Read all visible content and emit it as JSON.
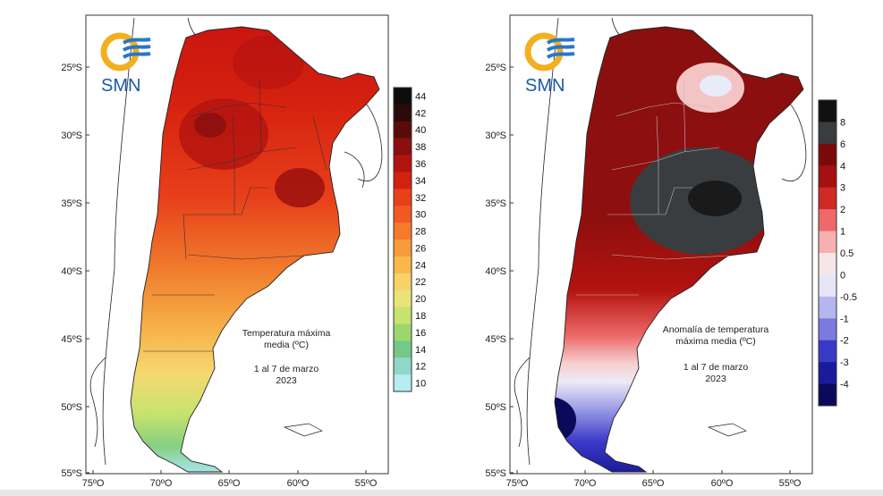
{
  "maps": [
    {
      "id": "tmax",
      "logo": {
        "text": "SMN",
        "colors": {
          "sun": "#f2b01e",
          "waves": "#2a76c8"
        }
      },
      "title_lines": [
        "Temperatura máxima",
        "media (ºC)"
      ],
      "date_line": "1 al 7 de marzo",
      "year_line": "2023",
      "lat_ticks": [
        "25ºS",
        "30ºS",
        "35ºS",
        "40ºS",
        "45ºS",
        "50ºS",
        "55ºS"
      ],
      "lon_ticks": [
        "75ºO",
        "70ºO",
        "65ºO",
        "60ºO",
        "55ºO"
      ],
      "legend": {
        "labels": [
          "44",
          "42",
          "40",
          "38",
          "36",
          "34",
          "32",
          "30",
          "28",
          "26",
          "24",
          "22",
          "20",
          "18",
          "16",
          "14",
          "12",
          "10"
        ],
        "colors": [
          "#0d0d0d",
          "#2a0a0a",
          "#5a0a0a",
          "#8a0f0f",
          "#b3130f",
          "#d4200f",
          "#e8401a",
          "#f05a22",
          "#f57a2c",
          "#f79a3a",
          "#f8b84a",
          "#f6d268",
          "#e8e47a",
          "#c6e36e",
          "#9ed66e",
          "#74c98a",
          "#8fd8c8",
          "#b6ecf4"
        ]
      }
    },
    {
      "id": "anomaly",
      "logo": {
        "text": "SMN",
        "colors": {
          "sun": "#f2b01e",
          "waves": "#2a76c8"
        }
      },
      "title_lines": [
        "Anomalía de temperatura",
        "máxima media (ºC)"
      ],
      "date_line": "1 al 7 de marzo",
      "year_line": "2023",
      "lat_ticks": [
        "25ºS",
        "30ºS",
        "35ºS",
        "40ºS",
        "45ºS",
        "50ºS",
        "55ºS"
      ],
      "lon_ticks": [
        "75ºO",
        "70ºO",
        "65ºO",
        "60ºO",
        "55ºO"
      ],
      "legend": {
        "labels": [
          "8",
          "6",
          "4",
          "3",
          "2",
          "1",
          "0.5",
          "0",
          "-0.5",
          "-1",
          "-2",
          "-3",
          "-4"
        ],
        "colors": [
          "#111111",
          "#3a3d3f",
          "#7a0a0a",
          "#a3100f",
          "#d02a25",
          "#ee6a6a",
          "#f7b0b0",
          "#f5e6ea",
          "#e6e6f6",
          "#b6b6ee",
          "#7a7ae0",
          "#3a3ac8",
          "#1a1a9a",
          "#0a0a5a"
        ]
      }
    }
  ]
}
